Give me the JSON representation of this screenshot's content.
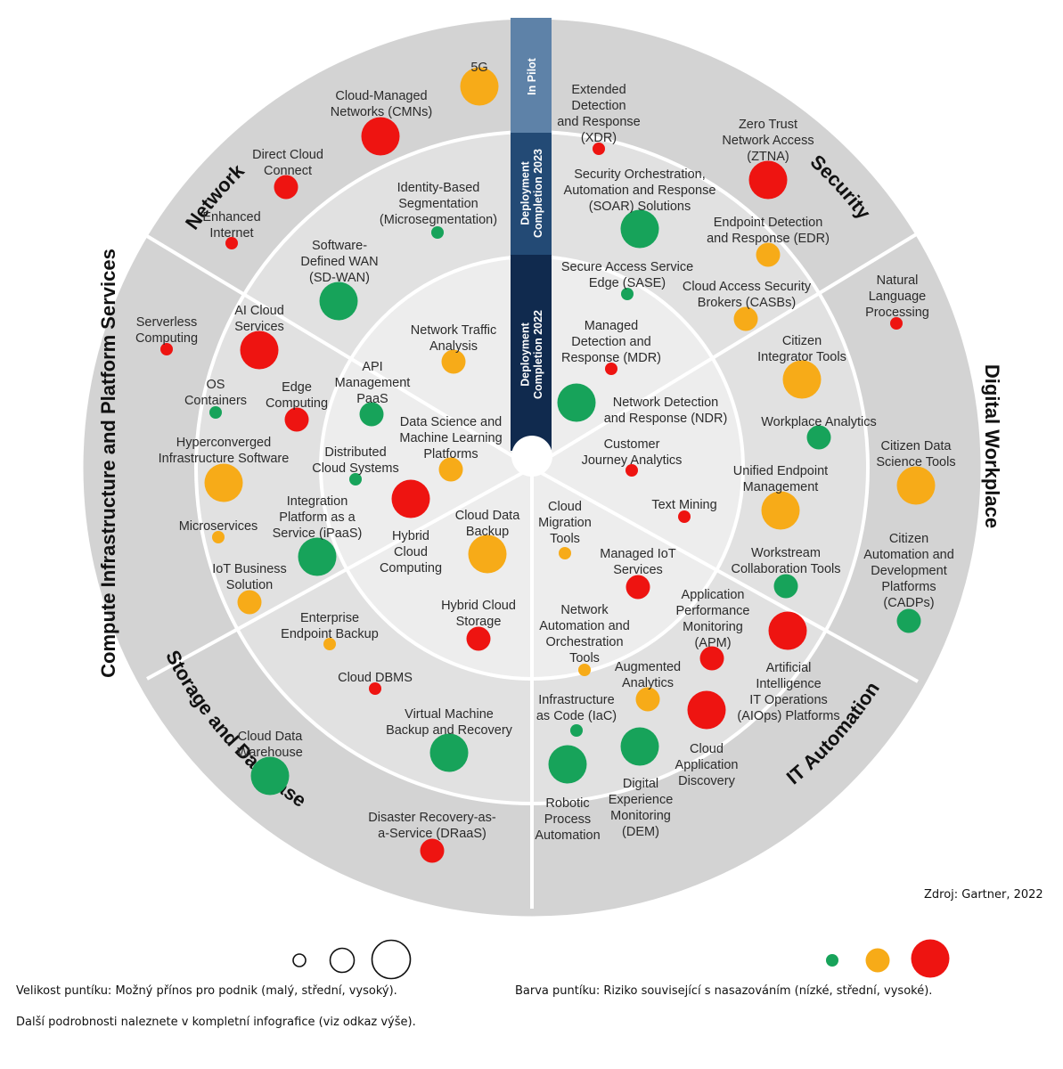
{
  "colors": {
    "low": "#17a35a",
    "medium": "#f7ab18",
    "high": "#ee1411",
    "ring_outer": "#d3d3d3",
    "ring_middle": "#e1e1e1",
    "ring_inner": "#ededed",
    "stage_pilot": "#5e82a8",
    "stage_2023": "#234a75",
    "stage_2022": "#102a4e"
  },
  "stages": [
    "In Pilot",
    "Deployment Completion 2023",
    "Deployment Completion 2022"
  ],
  "segments": [
    "Network",
    "Security",
    "Digital Workplace",
    "IT Automation",
    "Storage and Database",
    "Compute Infrastructure and Platform Services"
  ],
  "technologies": [
    {
      "lines": [
        "5G"
      ],
      "size": "high",
      "risk": "medium"
    },
    {
      "lines": [
        "Cloud-Managed",
        "Networks (CMNs)"
      ],
      "size": "high",
      "risk": "high"
    },
    {
      "lines": [
        "Direct Cloud",
        "Connect"
      ],
      "size": "medium",
      "risk": "high"
    },
    {
      "lines": [
        "Enhanced",
        "Internet"
      ],
      "size": "small",
      "risk": "high"
    },
    {
      "lines": [
        "Identity-Based",
        "Segmentation",
        "(Microsegmentation)"
      ],
      "size": "small",
      "risk": "low"
    },
    {
      "lines": [
        "Software-",
        "Defined WAN",
        "(SD-WAN)"
      ],
      "size": "high",
      "risk": "low"
    },
    {
      "lines": [
        "Network Traffic",
        "Analysis"
      ],
      "size": "medium",
      "risk": "medium"
    },
    {
      "lines": [
        "API",
        "Management",
        "PaaS"
      ],
      "size": "medium",
      "risk": "low"
    },
    {
      "lines": [
        "Extended",
        "Detection",
        "and Response",
        "(XDR)"
      ],
      "size": "small",
      "risk": "high"
    },
    {
      "lines": [
        "Zero Trust",
        "Network Access",
        "(ZTNA)"
      ],
      "size": "high",
      "risk": "high"
    },
    {
      "lines": [
        "Security Orchestration,",
        "Automation and Response",
        "(SOAR) Solutions"
      ],
      "size": "high",
      "risk": "low"
    },
    {
      "lines": [
        "Endpoint Detection",
        "and Response (EDR)"
      ],
      "size": "medium",
      "risk": "medium"
    },
    {
      "lines": [
        "Secure Access Service",
        "Edge (SASE)"
      ],
      "size": "small",
      "risk": "low"
    },
    {
      "lines": [
        "Cloud Access Security",
        "Brokers (CASBs)"
      ],
      "size": "medium",
      "risk": "medium"
    },
    {
      "lines": [
        "Managed",
        "Detection and",
        "Response (MDR)"
      ],
      "size": "small",
      "risk": "high"
    },
    {
      "lines": [
        "Network Detection",
        "and Response (NDR)"
      ],
      "size": "high",
      "risk": "low"
    },
    {
      "lines": [
        "Natural",
        "Language",
        "Processing"
      ],
      "size": "small",
      "risk": "high"
    },
    {
      "lines": [
        "Citizen",
        "Integrator Tools"
      ],
      "size": "high",
      "risk": "medium"
    },
    {
      "lines": [
        "Workplace Analytics"
      ],
      "size": "medium",
      "risk": "low"
    },
    {
      "lines": [
        "Citizen Data",
        "Science Tools"
      ],
      "size": "high",
      "risk": "medium"
    },
    {
      "lines": [
        "Unified Endpoint",
        "Management"
      ],
      "size": "high",
      "risk": "medium"
    },
    {
      "lines": [
        "Customer",
        "Journey Analytics"
      ],
      "size": "small",
      "risk": "high"
    },
    {
      "lines": [
        "Text Mining"
      ],
      "size": "small",
      "risk": "high"
    },
    {
      "lines": [
        "Citizen",
        "Automation and",
        "Development",
        "Platforms",
        "(CADPs)"
      ],
      "size": "medium",
      "risk": "low"
    },
    {
      "lines": [
        "Workstream",
        "Collaboration Tools"
      ],
      "size": "medium",
      "risk": "low"
    },
    {
      "lines": [
        "Artificial",
        "Intelligence",
        "IT Operations",
        "(AIOps) Platforms"
      ],
      "size": "high",
      "risk": "high"
    },
    {
      "lines": [
        "Application",
        "Performance",
        "Monitoring",
        "(APM)"
      ],
      "size": "medium",
      "risk": "high"
    },
    {
      "lines": [
        "Cloud",
        "Migration",
        "Tools"
      ],
      "size": "small",
      "risk": "medium"
    },
    {
      "lines": [
        "Managed IoT",
        "Services"
      ],
      "size": "medium",
      "risk": "high"
    },
    {
      "lines": [
        "Network",
        "Automation and",
        "Orchestration",
        "Tools"
      ],
      "size": "small",
      "risk": "medium"
    },
    {
      "lines": [
        "Augmented",
        "Analytics"
      ],
      "size": "medium",
      "risk": "medium"
    },
    {
      "lines": [
        "Cloud",
        "Application",
        "Discovery"
      ],
      "size": "high",
      "risk": "high"
    },
    {
      "lines": [
        "Infrastructure",
        "as Code (IaC)"
      ],
      "size": "small",
      "risk": "low"
    },
    {
      "lines": [
        "Digital",
        "Experience",
        "Monitoring",
        "(DEM)"
      ],
      "size": "high",
      "risk": "low"
    },
    {
      "lines": [
        "Robotic",
        "Process",
        "Automation"
      ],
      "size": "high",
      "risk": "low"
    },
    {
      "lines": [
        "Cloud Data",
        "Warehouse"
      ],
      "size": "high",
      "risk": "low"
    },
    {
      "lines": [
        "Disaster Recovery-as-",
        "a-Service (DRaaS)"
      ],
      "size": "medium",
      "risk": "high"
    },
    {
      "lines": [
        "Virtual Machine",
        "Backup and Recovery"
      ],
      "size": "high",
      "risk": "low"
    },
    {
      "lines": [
        "Enterprise",
        "Endpoint Backup"
      ],
      "size": "small",
      "risk": "medium"
    },
    {
      "lines": [
        "Cloud DBMS"
      ],
      "size": "small",
      "risk": "high"
    },
    {
      "lines": [
        "Hybrid Cloud",
        "Storage"
      ],
      "size": "medium",
      "risk": "high"
    },
    {
      "lines": [
        "Cloud Data",
        "Backup"
      ],
      "size": "high",
      "risk": "medium"
    },
    {
      "lines": [
        "Hybrid",
        "Cloud",
        "Computing"
      ],
      "size": "high",
      "risk": "high"
    },
    {
      "lines": [
        "Serverless",
        "Computing"
      ],
      "size": "small",
      "risk": "high"
    },
    {
      "lines": [
        "AI Cloud",
        "Services"
      ],
      "size": "high",
      "risk": "high"
    },
    {
      "lines": [
        "OS",
        "Containers"
      ],
      "size": "small",
      "risk": "low"
    },
    {
      "lines": [
        "Edge",
        "Computing"
      ],
      "size": "medium",
      "risk": "high"
    },
    {
      "lines": [
        "Hyperconverged",
        "Infrastructure Software"
      ],
      "size": "high",
      "risk": "medium"
    },
    {
      "lines": [
        "Microservices"
      ],
      "size": "small",
      "risk": "medium"
    },
    {
      "lines": [
        "IoT Business",
        "Solution"
      ],
      "size": "medium",
      "risk": "medium"
    },
    {
      "lines": [
        "Integration",
        "Platform as a",
        "Service (iPaaS)"
      ],
      "size": "high",
      "risk": "low"
    },
    {
      "lines": [
        "Distributed",
        "Cloud Systems"
      ],
      "size": "small",
      "risk": "low"
    },
    {
      "lines": [
        "Data Science and",
        "Machine Learning",
        "Platforms"
      ],
      "size": "medium",
      "risk": "medium"
    }
  ],
  "source": "Zdroj: Gartner, 2022",
  "legend": {
    "size_text": "Velikost puntíku: Možný přínos pro podnik (malý, střední, vysoký).",
    "color_text": "Barva puntíku: Riziko související s nasazováním (nízké, střední, vysoké).",
    "footer": "Další podrobnosti naleznete v kompletní infografice (viz odkaz výše)."
  }
}
